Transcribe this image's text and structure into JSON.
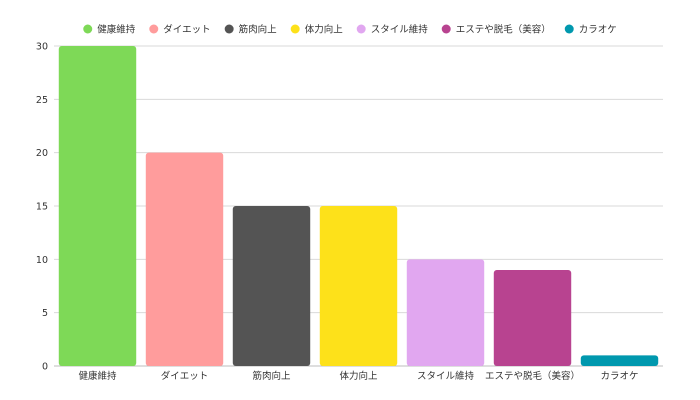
{
  "chart_data": {
    "type": "bar",
    "title": "",
    "xlabel": "",
    "ylabel": "",
    "categories": [
      "健康維持",
      "ダイエット",
      "筋肉向上",
      "体力向上",
      "スタイル維持",
      "エステや脱毛（美容）",
      "カラオケ"
    ],
    "values": [
      30,
      20,
      15,
      15,
      10,
      9,
      1
    ],
    "colors": [
      "#7ed957",
      "#ff9c9c",
      "#545454",
      "#fde11a",
      "#e1a7f0",
      "#b84390",
      "#0098ae"
    ],
    "ylim": [
      0,
      30
    ],
    "yticks": [
      0,
      5,
      10,
      15,
      20,
      25,
      30
    ],
    "grid": true,
    "legend": {
      "position": "top-center",
      "entries": [
        "健康維持",
        "ダイエット",
        "筋肉向上",
        "体力向上",
        "スタイル維持",
        "エステや脱毛（美容）",
        "カラオケ"
      ]
    }
  }
}
